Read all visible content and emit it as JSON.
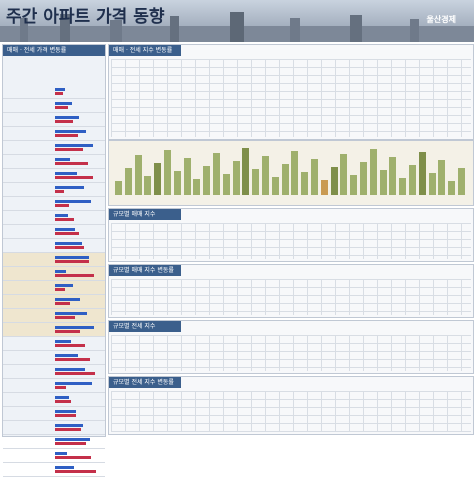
{
  "header": {
    "title": "주간 아파트 가격 동향",
    "brand": "울산경제",
    "date": ""
  },
  "left": {
    "title": "매매 · 전세 가격 변동률"
  },
  "right": {
    "top_title": "매매 · 전세 지수 변동률",
    "sections": [
      {
        "title": "규모별 매매 지수"
      },
      {
        "title": "규모별 매매 지수 변동률"
      },
      {
        "title": "규모별 전세 지수"
      },
      {
        "title": "규모별 전세 지수 변동률"
      }
    ]
  },
  "rows": [
    {
      "name": ""
    },
    {
      "name": ""
    },
    {
      "name": ""
    },
    {
      "name": ""
    },
    {
      "name": ""
    },
    {
      "name": ""
    },
    {
      "name": ""
    },
    {
      "name": ""
    },
    {
      "name": ""
    },
    {
      "name": ""
    },
    {
      "name": ""
    },
    {
      "name": ""
    },
    {
      "name": ""
    },
    {
      "name": ""
    },
    {
      "name": ""
    },
    {
      "name": ""
    },
    {
      "name": ""
    },
    {
      "name": ""
    },
    {
      "name": ""
    },
    {
      "name": ""
    },
    {
      "name": ""
    },
    {
      "name": ""
    },
    {
      "name": ""
    },
    {
      "name": ""
    },
    {
      "name": ""
    },
    {
      "name": ""
    },
    {
      "name": ""
    },
    {
      "name": ""
    }
  ]
}
